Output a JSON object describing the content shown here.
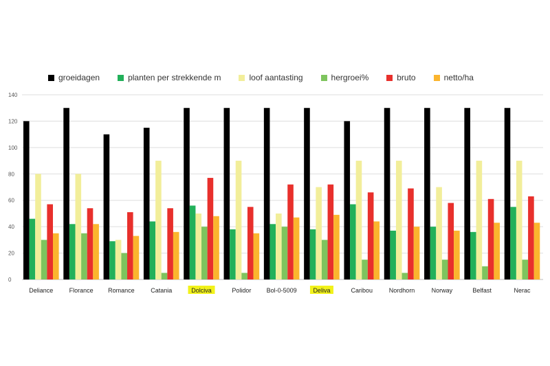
{
  "chart_data": {
    "type": "bar",
    "categories": [
      "Deliance",
      "Florance",
      "Romance",
      "Catania",
      "Dolciva",
      "Polidor",
      "Bol-0-5009",
      "Deliva",
      "Caribou",
      "Nordhorn",
      "Norway",
      "Belfast",
      "Nerac"
    ],
    "highlighted_categories": [
      "Dolciva",
      "Deliva"
    ],
    "highlight_color": "#f2f21a",
    "series": [
      {
        "name": "groeidagen",
        "color": "#000000",
        "values": [
          120,
          130,
          110,
          115,
          130,
          130,
          130,
          130,
          120,
          130,
          130,
          130,
          130
        ]
      },
      {
        "name": "planten per strekkende m",
        "color": "#22b05a",
        "values": [
          46,
          42,
          29,
          44,
          56,
          38,
          42,
          38,
          57,
          37,
          40,
          36,
          55
        ]
      },
      {
        "name": "loof aantasting",
        "color": "#f2ee9a",
        "values": [
          80,
          80,
          30,
          90,
          50,
          90,
          50,
          70,
          90,
          90,
          70,
          90,
          90
        ]
      },
      {
        "name": "hergroei%",
        "color": "#7ec45e",
        "values": [
          30,
          35,
          20,
          5,
          40,
          5,
          40,
          30,
          15,
          5,
          15,
          10,
          15
        ]
      },
      {
        "name": "bruto",
        "color": "#e8302c",
        "values": [
          57,
          54,
          51,
          54,
          77,
          55,
          72,
          72,
          66,
          69,
          58,
          61,
          63
        ]
      },
      {
        "name": "netto/ha",
        "color": "#fbb52e",
        "values": [
          35,
          42,
          33,
          36,
          48,
          35,
          47,
          49,
          44,
          40,
          37,
          43,
          43
        ]
      }
    ],
    "ylim": [
      0,
      140
    ],
    "yticks": [
      "0",
      "20",
      "40",
      "60",
      "80",
      "100",
      "120",
      "140"
    ],
    "grid": true,
    "legend_position": "top"
  }
}
